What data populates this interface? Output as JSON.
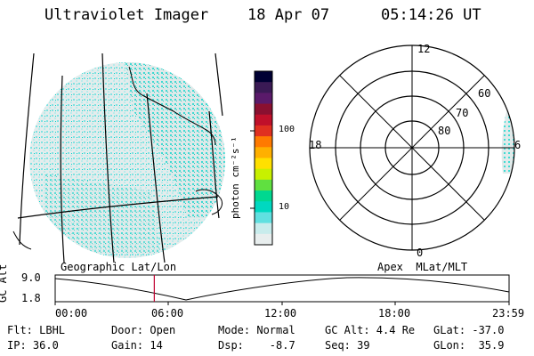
{
  "header": {
    "instrument": "Ultraviolet Imager",
    "date": "18 Apr 07",
    "time": "05:14:26 UT"
  },
  "colorbar": {
    "label": "photon cm⁻²s⁻¹",
    "ticks": [
      "100",
      "10"
    ],
    "colors": [
      "#000033",
      "#3a1a55",
      "#5a1a6a",
      "#8a1030",
      "#c0102a",
      "#e03020",
      "#ff7a00",
      "#ffb000",
      "#ffe000",
      "#c8f000",
      "#60e040",
      "#00d890",
      "#00d8c0",
      "#60e0e0",
      "#c8ecec",
      "#e8eeee"
    ]
  },
  "polar": {
    "mlt_labels": {
      "top": "12",
      "left": "18",
      "right": "6",
      "bottom": "0"
    },
    "lat_labels": [
      "60",
      "70",
      "80"
    ]
  },
  "timeline": {
    "left_label": "Geographic Lat/Lon",
    "right_label": "Apex  MLat/MLT",
    "y_axis_label": "GC Alt",
    "y_max": "9.0",
    "y_min": "1.8",
    "x_ticks": [
      "00:00",
      "06:00",
      "12:00",
      "18:00",
      "23:59"
    ],
    "current_marker_hour": 5.24
  },
  "info": {
    "filter": "Flt: LBHL",
    "ip": "IP: 36.0",
    "door": "Door: Open",
    "gain": "Gain: 14",
    "mode": "Mode: Normal",
    "dsp": "Dsp:    -8.7",
    "gc_alt": "GC Alt: 4.4 Re",
    "seq": "Seq: 39",
    "glat": "GLat: -37.0",
    "glon": "GLon:  35.9"
  }
}
